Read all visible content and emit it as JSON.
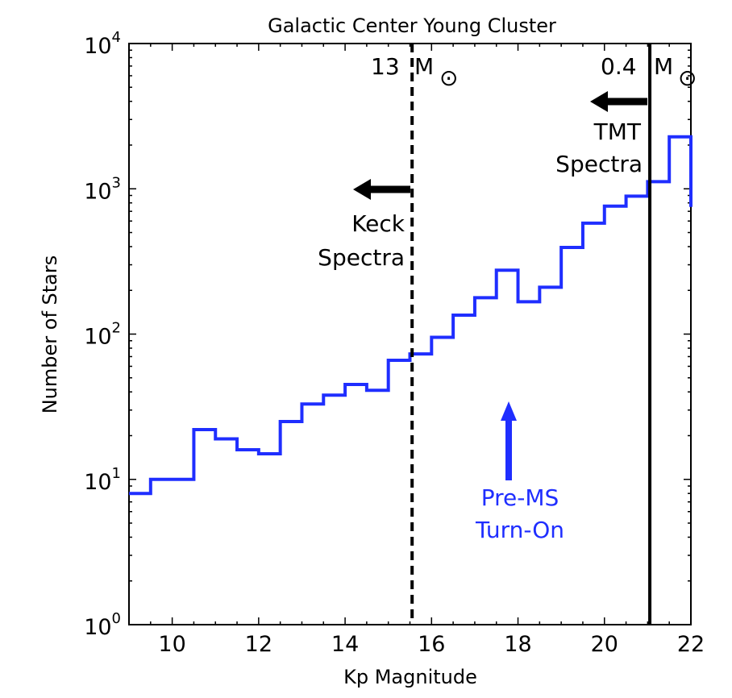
{
  "chart_data": {
    "type": "line",
    "style": "step-histogram",
    "title": "Galactic Center Young Cluster",
    "xlabel": "Kp Magnitude",
    "ylabel": "Number of Stars",
    "xlim": [
      9,
      22
    ],
    "ylim": [
      1,
      10000
    ],
    "yscale": "log",
    "xticks": [
      "10",
      "12",
      "14",
      "16",
      "18",
      "20",
      "22"
    ],
    "yticks": [
      {
        "base": "10",
        "exp": "0"
      },
      {
        "base": "10",
        "exp": "1"
      },
      {
        "base": "10",
        "exp": "2"
      },
      {
        "base": "10",
        "exp": "3"
      },
      {
        "base": "10",
        "exp": "4"
      }
    ],
    "grid": false,
    "series": [
      {
        "color": "#1f2eff",
        "bin_edges": [
          9,
          9.5,
          10,
          10.5,
          11,
          11.5,
          12,
          12.5,
          13,
          13.5,
          14,
          14.5,
          15,
          15.5,
          16,
          16.5,
          17,
          17.5,
          18,
          18.5,
          19,
          19.5,
          20,
          20.5,
          21,
          21.5,
          22
        ],
        "values": [
          8,
          10,
          10,
          22,
          19,
          16,
          15,
          25,
          33,
          38,
          45,
          41,
          66,
          73,
          95,
          135,
          178,
          275,
          167,
          210,
          395,
          580,
          760,
          890,
          1120,
          2280
        ]
      }
    ],
    "vlines": [
      {
        "x": 15.55,
        "style": "dashed",
        "label_value": "13",
        "label_unit": "M",
        "label_symbol": "⊙"
      },
      {
        "x": 21.05,
        "style": "solid",
        "label_value": "0.4",
        "label_unit": "M",
        "label_symbol": "⊙"
      }
    ],
    "annotations": [
      {
        "lines": [
          "Keck",
          "Spectra"
        ],
        "color": "#000000",
        "arrow": "left"
      },
      {
        "lines": [
          "TMT",
          "Spectra"
        ],
        "color": "#000000",
        "arrow": "left"
      },
      {
        "lines": [
          "Pre-MS",
          "Turn-On"
        ],
        "color": "#1f2eff",
        "arrow": "up"
      }
    ]
  }
}
